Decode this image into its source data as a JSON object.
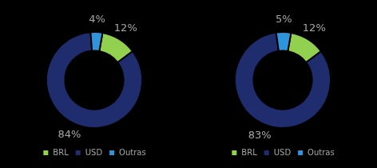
{
  "chart_data": [
    {
      "type": "doughnut",
      "categories": [
        "BRL",
        "USD",
        "Outras"
      ],
      "values": [
        12,
        84,
        4
      ],
      "value_labels": [
        "12%",
        "84%",
        "4%"
      ],
      "colors": [
        "#92d050",
        "#1f2d6e",
        "#2e95dd"
      ],
      "legend": "bottom",
      "data_labels": true
    },
    {
      "type": "doughnut",
      "categories": [
        "BRL",
        "USD",
        "Outras"
      ],
      "values": [
        12,
        83,
        5
      ],
      "value_labels": [
        "12%",
        "83%",
        "5%"
      ],
      "colors": [
        "#92d050",
        "#1f2d6e",
        "#2e95dd"
      ],
      "legend": "bottom",
      "data_labels": true
    }
  ]
}
